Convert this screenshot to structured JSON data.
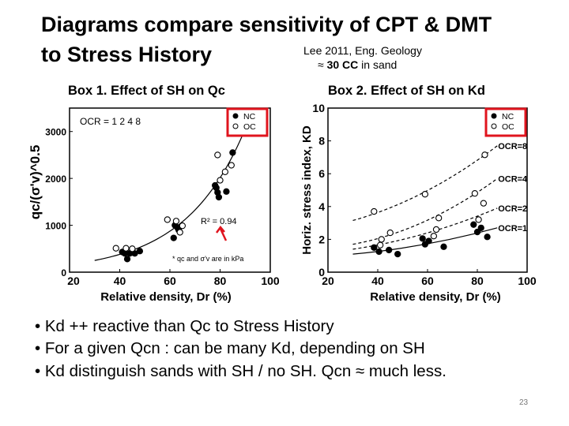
{
  "slide": {
    "title_line1": "Diagrams compare sensitivity of CPT & DMT",
    "title_line2": "to Stress History",
    "reference_line1": "Lee 2011, Eng. Geology",
    "reference_approx": "≈",
    "reference_bold": " 30 CC",
    "reference_rest": " in sand",
    "box1_label": "Box 1. Effect of SH on  Qc",
    "box2_label": "Box 2. Effect of SH on Kd",
    "bullets": [
      "• Kd ++ reactive than Qc to Stress History",
      "• For a given Qcn : can be many Kd, depending on SH",
      "• Kd distinguish sands with SH / no SH. Qcn ≈ much less."
    ],
    "page_number": "23",
    "highlight_color": "#e0141e"
  },
  "chart_data": [
    {
      "type": "scatter",
      "xlabel": "Relative density, Dr (%)",
      "ylabel": "qc/(σ'v)^0.5",
      "xlim": [
        20,
        100
      ],
      "ylim": [
        0,
        3500
      ],
      "xticks": [
        20,
        40,
        60,
        80,
        100
      ],
      "yticks": [
        0,
        1000,
        2000,
        3000
      ],
      "grid": false,
      "legend": [
        "NC",
        "OC"
      ],
      "legend_placement": "top-right",
      "annotations": [
        "OCR = 1   2   4   8",
        "R² = 0.94",
        "* qc and σ'v are in kPa"
      ],
      "series": [
        {
          "name": "NC",
          "marker": "filled-circle",
          "points": [
            [
              41,
              430
            ],
            [
              42,
              400
            ],
            [
              43,
              280
            ],
            [
              44,
              400
            ],
            [
              45,
              420
            ],
            [
              46,
              400
            ],
            [
              48,
              450
            ],
            [
              61.5,
              730
            ],
            [
              62,
              1000
            ],
            [
              63,
              950
            ],
            [
              63.5,
              900
            ],
            [
              78,
              1850
            ],
            [
              78.5,
              1800
            ],
            [
              79,
              1700
            ],
            [
              79.5,
              1600
            ],
            [
              82.5,
              1720
            ],
            [
              85,
              2550
            ]
          ]
        },
        {
          "name": "OC",
          "marker": "open-circle",
          "points": [
            [
              38.5,
              510
            ],
            [
              42.5,
              510
            ],
            [
              45,
              500
            ],
            [
              59,
              1120
            ],
            [
              62.5,
              1090
            ],
            [
              64,
              850
            ],
            [
              65,
              990
            ],
            [
              79,
              2500
            ],
            [
              80,
              1960
            ],
            [
              82,
              2140
            ],
            [
              84.5,
              2280
            ]
          ]
        }
      ],
      "fit": {
        "model": "exponential",
        "a": 71.6,
        "b": 0.0417,
        "x_range": [
          30,
          91
        ]
      }
    },
    {
      "type": "scatter",
      "xlabel": "Relative density, Dr (%)",
      "ylabel": "Horiz. stress index, KD",
      "xlim": [
        20,
        100
      ],
      "ylim": [
        0,
        10
      ],
      "xticks": [
        20,
        40,
        60,
        80,
        100
      ],
      "yticks": [
        0,
        2,
        4,
        6,
        8,
        10
      ],
      "grid": false,
      "legend": [
        "NC",
        "OC"
      ],
      "legend_placement": "top-right",
      "series": [
        {
          "name": "NC",
          "marker": "filled-circle",
          "points": [
            [
              38.5,
              1.5
            ],
            [
              40.5,
              1.25
            ],
            [
              44.5,
              1.35
            ],
            [
              48,
              1.1
            ],
            [
              58,
              2.05
            ],
            [
              59,
              1.7
            ],
            [
              60.5,
              1.9
            ],
            [
              66.5,
              1.55
            ],
            [
              78.5,
              2.9
            ],
            [
              80,
              2.45
            ],
            [
              81.5,
              2.7
            ],
            [
              84,
              2.15
            ]
          ]
        },
        {
          "name": "OC",
          "marker": "open-circle",
          "points": [
            [
              38.5,
              3.7
            ],
            [
              59,
              4.75
            ],
            [
              79,
              4.8
            ],
            [
              83,
              7.15
            ],
            [
              41,
              1.65
            ],
            [
              41.5,
              2.0
            ],
            [
              45,
              2.4
            ],
            [
              62.5,
              2.2
            ],
            [
              63.5,
              2.6
            ],
            [
              64.5,
              3.3
            ],
            [
              80.5,
              3.2
            ],
            [
              82.5,
              4.2
            ]
          ]
        }
      ],
      "trend_lines": [
        {
          "name": "OCR=8",
          "style": "dashed",
          "points": [
            [
              30,
              3.15
            ],
            [
              59,
              4.9
            ],
            [
              88,
              7.7
            ]
          ]
        },
        {
          "name": "OCR=4",
          "style": "dashed",
          "points": [
            [
              30,
              1.7
            ],
            [
              59,
              3.1
            ],
            [
              88,
              5.7
            ]
          ]
        },
        {
          "name": "OCR=2",
          "style": "dashed",
          "points": [
            [
              30,
              1.4
            ],
            [
              59,
              2.35
            ],
            [
              88,
              3.9
            ]
          ]
        },
        {
          "name": "OCR=1",
          "style": "solid",
          "points": [
            [
              30,
              1.1
            ],
            [
              59,
              1.7
            ],
            [
              88,
              2.7
            ]
          ]
        }
      ]
    }
  ]
}
